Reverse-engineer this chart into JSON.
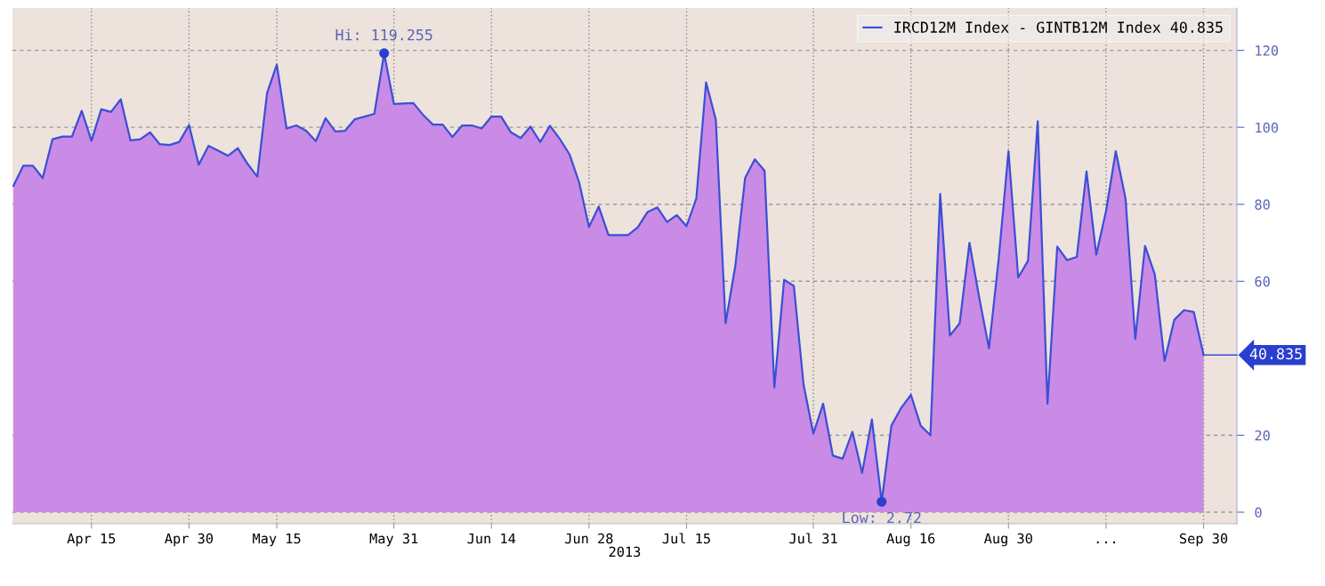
{
  "chart_data": {
    "type": "area",
    "xlabel": "2013",
    "categories": [
      null,
      null,
      null,
      null,
      null,
      null,
      null,
      null,
      "Apr 15",
      null,
      null,
      null,
      null,
      null,
      null,
      null,
      null,
      null,
      "Apr 30",
      null,
      null,
      null,
      null,
      null,
      null,
      null,
      null,
      "May 15",
      null,
      null,
      null,
      null,
      null,
      null,
      null,
      null,
      null,
      null,
      null,
      "May 31",
      null,
      null,
      null,
      null,
      null,
      null,
      null,
      null,
      null,
      "Jun 14",
      null,
      null,
      null,
      null,
      null,
      null,
      null,
      null,
      null,
      "Jun 28",
      null,
      null,
      null,
      null,
      null,
      null,
      null,
      null,
      null,
      "Jul 15",
      null,
      null,
      null,
      null,
      null,
      null,
      null,
      null,
      null,
      null,
      null,
      null,
      "Jul 31",
      null,
      null,
      null,
      null,
      null,
      null,
      null,
      null,
      null,
      "Aug 16",
      null,
      null,
      null,
      null,
      null,
      null,
      null,
      null,
      null,
      "Aug 30",
      null,
      null,
      null,
      null,
      null,
      null,
      null,
      null,
      null,
      "...",
      null,
      null,
      null,
      null,
      null,
      null,
      null,
      null,
      null,
      "Sep 30"
    ],
    "series": [
      {
        "name": "IRCD12M Index - GINTB12M Index 40.835",
        "color": "#3c4fd6",
        "values": [
          84.8,
          90,
          90,
          86.8,
          96.9,
          97.6,
          97.6,
          104.3,
          96.5,
          104.7,
          104.0,
          107.3,
          96.6,
          96.9,
          98.7,
          95.6,
          95.4,
          96.2,
          100.6,
          90.3,
          95.2,
          93.9,
          92.6,
          94.6,
          90.5,
          87.2,
          108.9,
          116.3,
          99.7,
          100.5,
          99.1,
          96.4,
          102.4,
          98.9,
          99.1,
          102.1,
          102.8,
          103.5,
          119.255,
          106.1,
          106.2,
          106.3,
          103.2,
          100.7,
          100.7,
          97.5,
          100.5,
          100.5,
          99.7,
          102.8,
          102.8,
          98.7,
          97.2,
          100.2,
          96.2,
          100.4,
          97,
          93.0,
          85.6,
          74.1,
          79.4,
          72.0,
          72.0,
          72.0,
          74.0,
          78.0,
          79.2,
          75.4,
          77.2,
          74.3,
          81.5,
          111.7,
          102.0,
          49.1,
          64,
          86.8,
          91.7,
          88.7,
          32.4,
          60.4,
          58.8,
          33.1,
          20.4,
          28.2,
          14.7,
          13.9,
          20.9,
          10.2,
          24.1,
          2.72,
          22.5,
          27.1,
          30.5,
          22.5,
          20.0,
          82.7,
          45.9,
          49.1,
          70.0,
          55.8,
          42.6,
          65.9,
          93.8,
          61.0,
          65.3,
          101.6,
          28.2,
          69.0,
          65.5,
          66.3,
          88.5,
          66.9,
          78.2,
          93.8,
          81.5,
          45.0,
          69.2,
          61.8,
          39.3,
          50.0,
          52.5,
          52.0,
          40.835
        ]
      }
    ],
    "ylim": [
      -3,
      131
    ],
    "yticks": [
      0,
      20,
      60,
      80,
      100,
      120
    ],
    "grid": true,
    "legend": "top right",
    "marker": "none",
    "line_style": "solid",
    "annotations": [
      {
        "text": "Hi: 119.255",
        "y": 119.255
      },
      {
        "text": "Low: 2.72",
        "y": 2.72
      },
      "40.835"
    ]
  }
}
